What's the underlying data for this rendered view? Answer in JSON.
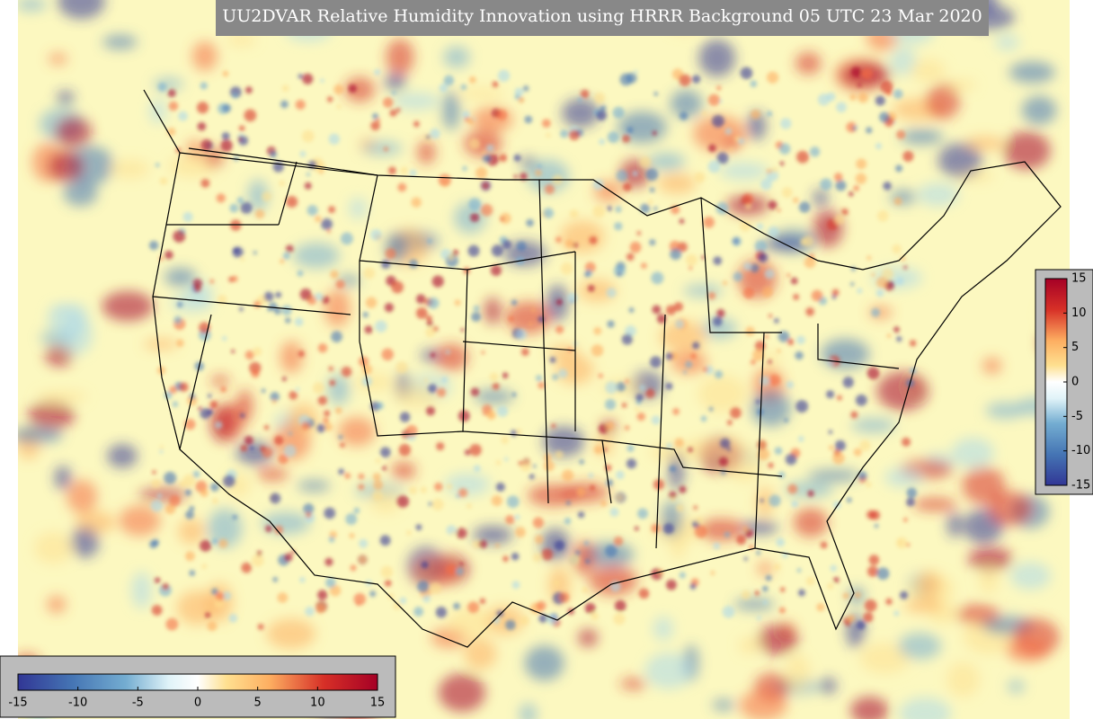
{
  "title": "UU2DVAR Relative Humidity Innovation using HRRR Background 05 UTC 23 Mar 2020",
  "colorbars": [
    {
      "orientation": "vertical",
      "ticks": [
        15,
        10,
        5,
        0,
        -5,
        -10,
        -15
      ]
    },
    {
      "orientation": "horizontal",
      "ticks": [
        -15,
        -10,
        -5,
        0,
        5,
        10,
        15
      ]
    }
  ]
}
